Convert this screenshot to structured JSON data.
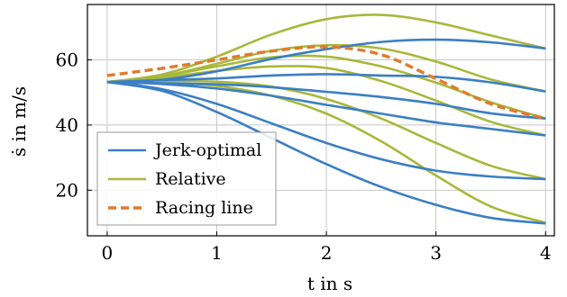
{
  "chart_data": {
    "type": "line",
    "xlabel": "t in s",
    "ylabel": "ṡ in m/s",
    "xlim": [
      -0.18,
      4.08
    ],
    "ylim": [
      6,
      77
    ],
    "x_ticks": [
      0,
      1,
      2,
      3,
      4
    ],
    "y_ticks": [
      20,
      40,
      60
    ],
    "grid": true,
    "legend_position": "bottom-left",
    "colors": {
      "jerk_optimal": "#3b7fc4",
      "relative": "#a8b83a",
      "racing_line": "#e07a2c"
    },
    "legend": [
      {
        "label": "Jerk-optimal",
        "color": "#3b7fc4",
        "dash": false
      },
      {
        "label": "Relative",
        "color": "#a8b83a",
        "dash": false
      },
      {
        "label": "Racing line",
        "color": "#e07a2c",
        "dash": true
      }
    ],
    "x": [
      0,
      0.5,
      1,
      1.5,
      2,
      2.5,
      3,
      3.5,
      4
    ],
    "series": [
      {
        "group": "Jerk-optimal",
        "values": [
          53.2,
          53.9,
          56.5,
          60.3,
          63.3,
          65.5,
          66.2,
          65.4,
          63.5
        ]
      },
      {
        "group": "Jerk-optimal",
        "values": [
          53.2,
          53.8,
          54.3,
          55.2,
          55.6,
          55.2,
          54.8,
          53.1,
          50.3
        ]
      },
      {
        "group": "Jerk-optimal",
        "values": [
          53.2,
          52.8,
          52.5,
          51.6,
          50.2,
          48.6,
          46.5,
          43.6,
          42.0
        ]
      },
      {
        "group": "Jerk-optimal",
        "values": [
          53.2,
          52.6,
          51.2,
          49.0,
          46.2,
          43.5,
          40.8,
          38.8,
          36.8
        ]
      },
      {
        "group": "Jerk-optimal",
        "values": [
          53.2,
          51.0,
          46.5,
          40.5,
          34.5,
          29.5,
          26.0,
          24.2,
          23.4
        ]
      },
      {
        "group": "Jerk-optimal",
        "values": [
          53.2,
          50.5,
          44.0,
          36.0,
          28.0,
          21.0,
          15.5,
          11.5,
          9.8
        ]
      },
      {
        "group": "Relative",
        "values": [
          53.2,
          55.5,
          61.0,
          67.8,
          72.5,
          73.8,
          71.5,
          67.5,
          63.5
        ]
      },
      {
        "group": "Relative",
        "values": [
          53.2,
          55.0,
          58.8,
          62.8,
          64.5,
          63.5,
          59.5,
          54.0,
          50.3
        ]
      },
      {
        "group": "Relative",
        "values": [
          53.2,
          55.0,
          58.0,
          60.8,
          61.0,
          58.0,
          53.0,
          47.0,
          42.0
        ]
      },
      {
        "group": "Relative",
        "values": [
          53.2,
          54.5,
          56.6,
          58.0,
          57.5,
          53.5,
          47.5,
          41.0,
          36.8
        ]
      },
      {
        "group": "Relative",
        "values": [
          53.2,
          53.5,
          53.3,
          51.8,
          48.0,
          42.0,
          34.5,
          27.5,
          23.4
        ]
      },
      {
        "group": "Relative",
        "values": [
          53.2,
          53.0,
          52.0,
          49.0,
          43.5,
          35.0,
          24.5,
          15.0,
          10.0
        ]
      },
      {
        "group": "Racing line",
        "values": [
          55.2,
          57.4,
          60.0,
          62.7,
          64.0,
          61.6,
          54.2,
          46.5,
          42.0
        ]
      }
    ]
  }
}
